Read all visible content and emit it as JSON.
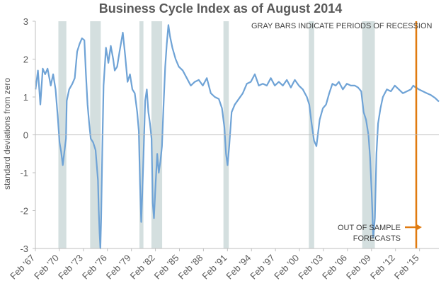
{
  "chart_data": {
    "type": "line",
    "title": "Business Cycle Index as of August 2014",
    "ylabel": "standard deviations from zero",
    "xlabel": "",
    "ylim": [
      -3,
      3
    ],
    "xlim": [
      1967.08,
      2017.5
    ],
    "y_ticks": [
      "-3",
      "-2",
      "-1",
      "0",
      "1",
      "2",
      "3"
    ],
    "x_ticks": [
      "Feb '67",
      "Feb '70",
      "Feb '73",
      "Feb '76",
      "Feb '79",
      "Feb '82",
      "Feb '85",
      "Feb '88",
      "Feb '91",
      "Feb '94",
      "Feb '97",
      "Feb '00",
      "Feb '03",
      "Feb '06",
      "Feb '09",
      "Feb '12",
      "Feb '15"
    ],
    "grid": false,
    "recession_note": "GRAY BARS INDICATE PERIODS OF RECESSION",
    "forecast_note_line1": "OUT OF SAMPLE",
    "forecast_note_line2": "FORECASTS",
    "forecast_start": 2014.67,
    "colors": {
      "line": "#6fa3d6",
      "recession": "#d4dfdf",
      "forecast": "#e07b10",
      "axis": "#bfbfbf"
    },
    "recessions": [
      [
        1969.95,
        1970.95
      ],
      [
        1973.92,
        1975.25
      ],
      [
        1980.08,
        1980.58
      ],
      [
        1981.58,
        1982.92
      ],
      [
        1990.58,
        1991.25
      ],
      [
        2001.25,
        2001.92
      ],
      [
        2007.92,
        2009.5
      ]
    ],
    "series": [
      {
        "x": [
          1967.1,
          1967.4,
          1967.7,
          1968.0,
          1968.3,
          1968.6,
          1969.0,
          1969.3,
          1969.6,
          1969.9,
          1970.1,
          1970.3,
          1970.5,
          1970.7,
          1970.9,
          1971.0,
          1971.3,
          1971.7,
          1972.0,
          1972.3,
          1972.6,
          1972.9,
          1973.2,
          1973.4,
          1973.6,
          1973.8,
          1974.0,
          1974.3,
          1974.6,
          1974.9,
          1975.0,
          1975.1,
          1975.2,
          1975.3,
          1975.45,
          1975.6,
          1975.9,
          1976.2,
          1976.5,
          1976.8,
          1977.0,
          1977.3,
          1977.6,
          1978.0,
          1978.3,
          1978.6,
          1978.9,
          1979.2,
          1979.5,
          1979.8,
          1980.0,
          1980.15,
          1980.3,
          1980.45,
          1980.6,
          1980.8,
          1981.0,
          1981.2,
          1981.4,
          1981.6,
          1981.75,
          1981.9,
          1982.1,
          1982.3,
          1982.5,
          1982.7,
          1982.9,
          1983.1,
          1983.3,
          1983.5,
          1983.7,
          1983.9,
          1984.2,
          1984.6,
          1985.0,
          1985.5,
          1986.0,
          1986.5,
          1987.0,
          1987.5,
          1988.0,
          1988.5,
          1989.0,
          1989.5,
          1990.0,
          1990.4,
          1990.7,
          1990.9,
          1991.1,
          1991.3,
          1991.6,
          1992.0,
          1992.5,
          1993.0,
          1993.5,
          1994.0,
          1994.5,
          1995.0,
          1995.5,
          1996.0,
          1996.5,
          1997.0,
          1997.5,
          1998.0,
          1998.5,
          1999.0,
          1999.5,
          2000.0,
          2000.5,
          2001.0,
          2001.3,
          2001.6,
          2001.9,
          2002.2,
          2002.6,
          2003.0,
          2003.4,
          2003.8,
          2004.2,
          2004.6,
          2005.0,
          2005.5,
          2006.0,
          2006.5,
          2007.0,
          2007.4,
          2007.8,
          2008.1,
          2008.4,
          2008.7,
          2008.9,
          2009.1,
          2009.3,
          2009.5,
          2009.7,
          2009.9,
          2010.2,
          2010.5,
          2011.0,
          2011.5,
          2012.0,
          2012.5,
          2013.0,
          2013.5,
          2014.0,
          2014.3,
          2014.6
        ],
        "values": [
          1.2,
          1.7,
          0.8,
          1.75,
          1.6,
          1.75,
          1.3,
          1.6,
          1.2,
          0.4,
          -0.2,
          -0.45,
          -0.8,
          -0.45,
          -0.1,
          0.9,
          1.2,
          1.35,
          1.5,
          2.2,
          2.4,
          2.55,
          2.5,
          1.6,
          0.8,
          0.3,
          -0.1,
          -0.2,
          -0.4,
          -1.2,
          -2.0,
          -2.6,
          -3.0,
          -2.2,
          -0.3,
          1.3,
          2.3,
          1.9,
          2.35,
          2.0,
          1.7,
          1.8,
          2.2,
          2.7,
          2.1,
          1.4,
          1.6,
          1.2,
          1.1,
          0.6,
          0.1,
          -1.3,
          -2.3,
          -1.5,
          -0.5,
          0.9,
          1.2,
          0.6,
          0.3,
          -0.1,
          -1.8,
          -2.2,
          -1.3,
          -0.5,
          -1.0,
          -0.7,
          -0.3,
          0.8,
          1.8,
          2.4,
          2.9,
          2.6,
          2.3,
          2.0,
          1.8,
          1.7,
          1.5,
          1.3,
          1.4,
          1.45,
          1.3,
          1.5,
          1.1,
          1.0,
          0.95,
          0.7,
          0.2,
          -0.5,
          -0.8,
          -0.3,
          0.6,
          0.8,
          0.95,
          1.1,
          1.35,
          1.4,
          1.6,
          1.3,
          1.35,
          1.3,
          1.5,
          1.3,
          1.4,
          1.3,
          1.45,
          1.25,
          1.45,
          1.3,
          1.2,
          1.0,
          0.8,
          0.3,
          -0.15,
          -0.3,
          0.4,
          0.7,
          0.8,
          1.1,
          1.35,
          1.3,
          1.4,
          1.2,
          1.35,
          1.3,
          1.3,
          1.25,
          1.15,
          0.6,
          0.4,
          0.0,
          -0.6,
          -1.5,
          -2.7,
          -2.2,
          -0.5,
          0.3,
          0.7,
          1.0,
          1.2,
          1.15,
          1.3,
          1.2,
          1.1,
          1.15,
          1.2,
          1.3,
          1.25
        ]
      },
      {
        "x": [
          2014.67,
          2015.0,
          2015.5,
          2016.0,
          2016.5,
          2017.0,
          2017.5
        ],
        "values": [
          1.25,
          1.2,
          1.15,
          1.1,
          1.05,
          0.98,
          0.88
        ]
      }
    ]
  }
}
